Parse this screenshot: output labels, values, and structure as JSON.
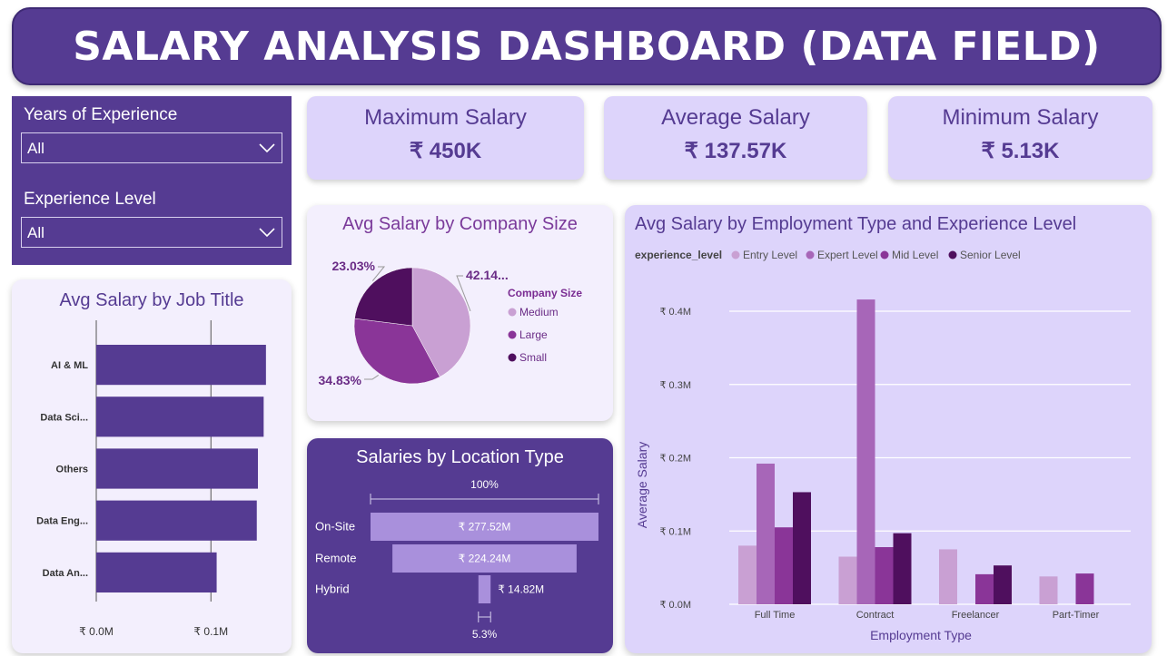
{
  "header": {
    "title": "SALARY ANALYSIS DASHBOARD (DATA FIELD)"
  },
  "slicers": {
    "years": {
      "label": "Years of Experience",
      "value": "All"
    },
    "level": {
      "label": "Experience Level",
      "value": "All"
    }
  },
  "kpis": {
    "max": {
      "label": "Maximum Salary",
      "value": "₹ 450K"
    },
    "avg": {
      "label": "Average Salary",
      "value": "₹ 137.57K"
    },
    "min": {
      "label": "Minimum Salary",
      "value": "₹ 5.13K"
    }
  },
  "colors": {
    "brand": "#553b92",
    "kpi_bg": "#ddd4fb",
    "panel_bg": "#f3effd",
    "entry": "#c9a0d3",
    "expert": "#a766b8",
    "mid": "#8a3598",
    "senior": "#4f0f5e",
    "funnel": "#a990dc"
  },
  "charts": {
    "job_title": {
      "title": "Avg Salary by Job Title",
      "chart_data": {
        "type": "bar",
        "orientation": "horizontal",
        "categories": [
          "AI & ML",
          "Data Sci...",
          "Others",
          "Data Eng...",
          "Data An..."
        ],
        "values": [
          0.148,
          0.146,
          0.141,
          0.14,
          0.105
        ],
        "xlim": [
          0,
          0.16
        ],
        "x_ticks": [
          0,
          0.1
        ],
        "x_tick_labels": [
          "₹ 0.0M",
          "₹ 0.1M"
        ],
        "grid": true
      }
    },
    "company_size": {
      "title": "Avg Salary by Company Size",
      "chart_data": {
        "type": "pie",
        "legend_title": "Company Size",
        "legend_position": "right",
        "categories": [
          "Medium",
          "Large",
          "Small"
        ],
        "values": [
          42.14,
          34.83,
          23.03
        ],
        "labels": [
          "42.14...",
          "34.83%",
          "23.03%"
        ]
      }
    },
    "location": {
      "title": "Salaries by Location Type",
      "chart_data": {
        "type": "bar",
        "subtype": "funnel",
        "categories": [
          "On-Site",
          "Remote",
          "Hybrid"
        ],
        "values": [
          277.52,
          224.24,
          14.82
        ],
        "value_labels": [
          "₹ 277.52M",
          "₹ 224.24M",
          "₹ 14.82M"
        ],
        "top_percent": "100%",
        "bottom_percent": "5.3%"
      }
    },
    "employment": {
      "title": "Avg Salary by Employment Type and Experience Level",
      "chart_data": {
        "type": "bar",
        "legend_title": "experience_level",
        "legend_position": "top-left",
        "categories": [
          "Full Time",
          "Contract",
          "Freelancer",
          "Part-Timer"
        ],
        "series": [
          {
            "name": "Entry Level",
            "values": [
              0.08,
              0.065,
              0.075,
              0.038
            ]
          },
          {
            "name": "Expert Level",
            "values": [
              0.192,
              0.416,
              null,
              null
            ]
          },
          {
            "name": "Mid Level",
            "values": [
              0.105,
              0.078,
              0.041,
              0.042
            ]
          },
          {
            "name": "Senior Level",
            "values": [
              0.153,
              0.097,
              0.053,
              null
            ]
          }
        ],
        "xlabel": "Employment Type",
        "ylabel": "Average Salary",
        "ylim": [
          0,
          0.4
        ],
        "y_ticks": [
          0,
          0.1,
          0.2,
          0.3,
          0.4
        ],
        "y_tick_labels": [
          "₹ 0.0M",
          "₹ 0.1M",
          "₹ 0.2M",
          "₹ 0.3M",
          "₹ 0.4M"
        ],
        "grid": true
      }
    }
  }
}
